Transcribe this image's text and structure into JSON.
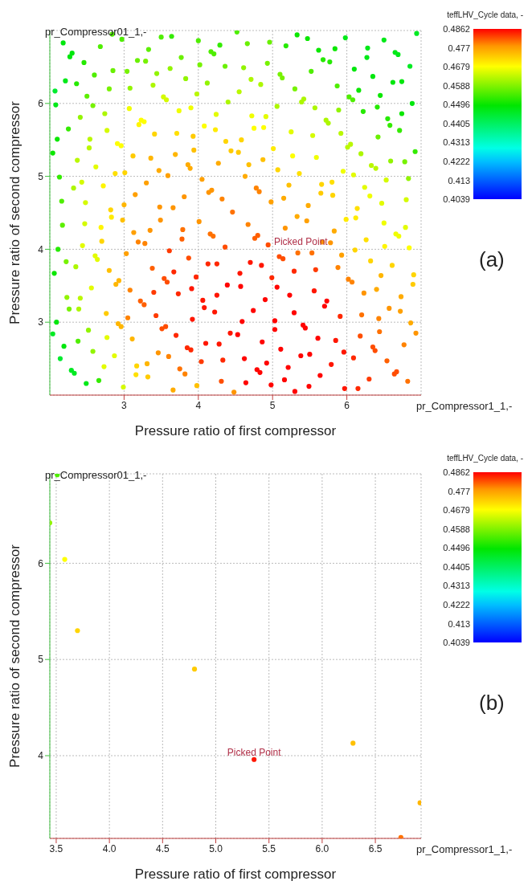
{
  "chart_data": [
    {
      "type": "scatter",
      "xlabel": "Pressure ratio of first compressor",
      "ylabel": "Pressure ratio of second compressor",
      "clabel": "teffLHV_Cycle data, -",
      "marker": "circle",
      "grid": true,
      "xlim": [
        2,
        7
      ],
      "ylim": [
        2,
        7
      ],
      "xticks": [
        3,
        4,
        5,
        6
      ],
      "yticks": [
        3,
        4,
        5,
        6
      ],
      "clim": [
        0.4039,
        0.4862
      ],
      "cticks": [
        0.4039,
        0.413,
        0.4222,
        0.4313,
        0.4405,
        0.4496,
        0.4588,
        0.4679,
        0.477,
        0.4862
      ],
      "annotations": [
        "pr_Compressor01_1,-",
        "pr_Compressor1_1,-",
        "(a)",
        {
          "text": "Picked Point",
          "x": 5.38,
          "y": 4.0
        }
      ],
      "x": [
        2.18,
        2.3,
        2.27,
        2.68,
        2.84,
        2.97,
        2.46,
        2.6,
        2.21,
        2.36,
        2.07,
        2.08,
        2.5,
        2.8,
        2.85,
        2.58,
        2.41,
        2.74,
        2.25,
        2.1,
        2.54,
        2.77,
        2.91,
        2.96,
        2.04,
        2.37,
        2.62,
        2.53,
        2.88,
        3.01,
        2.13,
        2.32,
        2.43,
        2.72,
        2.16,
        2.48,
        2.82,
        3.04,
        3.08,
        3.18,
        3.29,
        3.33,
        3.5,
        3.64,
        3.39,
        3.44,
        3.53,
        3.57,
        3.62,
        3.77,
        3.83,
        3.98,
        3.07,
        3.23,
        3.2,
        3.27,
        3.41,
        3.74,
        3.9,
        3.71,
        3.93,
        3.94,
        3.12,
        3.36,
        3.69,
        3.86,
        3.89,
        3.47,
        3.59,
        3.3,
        3.15,
        3.0,
        3.48,
        3.66,
        3.81,
        4.0,
        4.17,
        4.21,
        4.29,
        4.02,
        4.36,
        4.12,
        4.4,
        4.24,
        4.08,
        4.23,
        4.37,
        4.27,
        4.05,
        4.14,
        4.18,
        4.32,
        4.46,
        4.52,
        4.66,
        4.96,
        4.61,
        4.93,
        4.71,
        4.84,
        4.55,
        5.33,
        5.47,
        5.18,
        5.62,
        5.84,
        5.68,
        5.77,
        5.52,
        5.1,
        5.13,
        5.3,
        5.87,
        5.42,
        5.39,
        5.98,
        6.5,
        6.28,
        6.27,
        6.65,
        6.69,
        6.94,
        6.85,
        6.1,
        6.35,
        6.62,
        6.74,
        6.16,
        6.45,
        6.03,
        6.08,
        6.88,
        5.06,
        4.72,
        4.91,
        4.75,
        4.88,
        5.57,
        5.89,
        5.72,
        5.75,
        5.25,
        5.54,
        5.92,
        6.41,
        6.22,
        6.55,
        6.74,
        6.58,
        6.71,
        6.42,
        6.92,
        6.01,
        6.05,
        4.58,
        4.44,
        4.54,
        5.01,
        5.27,
        5.59,
        6.19,
        6.59,
        6.78,
        6.33,
        6.39,
        4.68,
        4.87,
        5.07,
        5.36,
        5.95,
        6.09,
        6.83,
        4.63,
        5.22,
        5.66,
        5.8,
        5.65,
        5.81,
        6.53,
        6.24,
        6.31,
        6.47,
        6.8,
        4.78,
        4.82,
        4.98,
        5.15,
        5.48,
        6.14,
        2.17,
        2.47,
        2.69,
        2.83,
        2.98,
        2.7,
        2.44,
        2.11,
        3.13,
        3.19,
        3.28,
        3.35,
        3.49,
        3.79,
        3.78,
        4.01,
        4.16,
        4.2,
        4.36,
        2.61,
        2.64,
        2.22,
        2.35,
        2.06,
        2.8,
        2.89,
        2.93,
        2.56,
        3.03,
        3.08,
        3.38,
        3.54,
        3.58,
        3.61,
        3.67,
        3.87,
        3.97,
        3.4,
        3.73,
        3.91,
        3.22,
        3.27,
        3.43,
        3.05,
        3.92,
        2.76,
        2.23,
        2.41,
        2.26,
        2.39,
        4.13,
        4.25,
        4.39,
        4.06,
        4.25,
        4.08,
        4.22,
        2.09,
        2.04,
        2.52,
        2.19,
        2.38,
        2.14,
        2.29,
        2.33,
        2.49,
        2.66,
        2.58,
        2.77,
        2.87,
        2.73,
        2.99,
        2.92,
        2.96,
        3.11,
        3.17,
        3.16,
        3.31,
        3.32,
        3.46,
        3.6,
        3.51,
        3.56,
        3.7,
        3.85,
        3.9,
        3.75,
        3.82,
        3.66,
        3.98,
        4.04,
        4.1,
        4.28,
        4.33,
        4.31,
        4.43,
        4.48,
        4.67,
        4.76,
        4.8,
        4.94,
        5.17,
        5.33,
        5.46,
        5.09,
        5.14,
        5.34,
        5.53,
        5.67,
        5.78,
        5.83,
        5.93,
        5.99,
        6.12,
        6.5,
        6.79,
        6.66,
        6.7,
        6.26,
        6.51,
        6.84,
        6.11,
        6.32,
        6.61,
        4.7,
        4.85,
        4.56,
        4.57,
        4.99,
        5.29,
        5.58,
        5.88,
        6.02,
        6.07,
        6.46,
        6.9,
        6.89,
        6.4,
        6.73,
        6.23,
        5.06,
        5.23,
        4.9,
        5.56,
        5.73,
        5.7,
        4.74,
        5.29,
        5.91,
        6.2,
        6.57,
        6.43,
        6.72,
        4.59,
        5.03,
        5.41,
        5.44,
        6.86,
        4.53,
        5.03,
        4.86,
        5.61,
        5.85,
        6.18,
        6.44,
        6.93,
        6.77,
        5.11,
        5.38,
        5.5,
        5.96,
        6.35,
        6.38,
        6.09,
        4.62,
        4.92,
        4.79,
        4.83,
        5.21,
        5.79,
        6.54,
        6.64,
        6.67,
        6.82,
        6.3,
        5.64,
        5.16,
        4.64,
        4.98,
        5.49,
        5.97,
        6.15,
        5.3
      ],
      "values": [
        6.83,
        6.69,
        6.64,
        6.78,
        6.95,
        6.88,
        6.56,
        6.39,
        6.31,
        6.27,
        6.17,
        5.98,
        6.1,
        6.2,
        6.45,
        5.97,
        5.81,
        5.86,
        5.65,
        5.51,
        5.51,
        5.63,
        5.45,
        5.42,
        5.32,
        5.22,
        5.13,
        5.39,
        5.04,
        5.05,
        4.99,
        4.84,
        4.92,
        4.87,
        4.66,
        4.64,
        4.54,
        6.44,
        6.21,
        6.59,
        6.58,
        6.74,
        6.91,
        6.92,
        6.25,
        6.41,
        6.09,
        6.05,
        6.48,
        6.63,
        6.34,
        6.13,
        5.93,
        5.77,
        5.71,
        5.75,
        5.58,
        5.9,
        5.94,
        5.59,
        5.55,
        5.36,
        5.28,
        5.25,
        5.3,
        5.16,
        5.11,
        5.08,
        5.01,
        4.91,
        4.75,
        4.61,
        4.58,
        4.57,
        4.72,
        6.86,
        6.71,
        6.68,
        6.8,
        6.53,
        6.51,
        6.28,
        6.02,
        5.85,
        5.69,
        5.64,
        5.48,
        5.18,
        4.96,
        4.78,
        4.81,
        4.69,
        4.51,
        6.98,
        6.82,
        6.84,
        6.49,
        6.55,
        6.33,
        6.26,
        6.16,
        6.94,
        6.89,
        6.79,
        6.73,
        6.75,
        6.6,
        6.57,
        6.44,
        6.4,
        6.35,
        6.2,
        6.24,
        6.06,
        6.02,
        6.9,
        6.87,
        6.76,
        6.63,
        6.7,
        6.67,
        6.96,
        6.51,
        6.47,
        6.37,
        6.29,
        6.3,
        6.18,
        6.11,
        6.09,
        6.05,
        6.0,
        5.96,
        5.83,
        5.82,
        5.66,
        5.67,
        5.94,
        5.91,
        5.77,
        5.73,
        5.61,
        5.56,
        5.59,
        5.95,
        5.89,
        5.79,
        5.86,
        5.7,
        5.63,
        5.54,
        5.34,
        5.4,
        5.44,
        5.5,
        5.35,
        5.33,
        5.38,
        5.28,
        5.26,
        5.31,
        5.21,
        5.2,
        5.15,
        5.11,
        5.16,
        5.23,
        5.09,
        5.04,
        5.07,
        5.02,
        4.97,
        5.0,
        4.88,
        4.89,
        4.92,
        4.77,
        4.74,
        4.95,
        4.85,
        4.73,
        4.63,
        4.68,
        4.84,
        4.79,
        4.65,
        4.7,
        4.6,
        4.56,
        4.33,
        4.35,
        4.3,
        4.44,
        4.4,
        4.11,
        4.05,
        4.0,
        4.23,
        4.1,
        4.08,
        4.26,
        4.4,
        4.27,
        4.14,
        4.38,
        4.21,
        4.18,
        4.03,
        3.91,
        3.86,
        3.83,
        3.76,
        3.67,
        3.71,
        3.52,
        3.57,
        3.47,
        3.94,
        3.44,
        3.74,
        3.6,
        3.55,
        3.98,
        3.69,
        3.88,
        3.62,
        3.41,
        3.39,
        3.46,
        3.29,
        3.24,
        3.09,
        3.06,
        3.04,
        3.12,
        3.34,
        3.33,
        3.18,
        3.18,
        3.8,
        3.8,
        3.51,
        3.3,
        3.37,
        3.2,
        3.14,
        3.0,
        2.84,
        2.89,
        2.67,
        2.74,
        2.5,
        2.34,
        2.3,
        2.16,
        2.2,
        2.6,
        2.79,
        2.54,
        2.39,
        2.11,
        2.98,
        2.94,
        2.77,
        2.4,
        2.28,
        2.43,
        2.25,
        2.58,
        2.53,
        2.91,
        2.94,
        2.82,
        2.65,
        2.62,
        2.36,
        2.29,
        2.07,
        2.13,
        2.46,
        2.71,
        2.7,
        2.48,
        2.19,
        2.85,
        2.04,
        4.34,
        4.15,
        4.19,
        4.06,
        4.29,
        4.45,
        4.39,
        3.9,
        3.87,
        3.95,
        3.95,
        4.1,
        4.09,
        4.25,
        3.92,
        4.41,
        4.43,
        4.36,
        4.3,
        4.21,
        4.18,
        4.13,
        4.04,
        4.02,
        3.99,
        3.84,
        3.78,
        3.82,
        3.78,
        3.67,
        3.49,
        3.61,
        3.7,
        3.72,
        3.75,
        3.59,
        3.55,
        3.64,
        3.65,
        3.52,
        3.45,
        3.35,
        3.4,
        3.48,
        3.37,
        3.31,
        3.43,
        3.29,
        3.22,
        3.16,
        3.13,
        3.08,
        3.1,
        3.19,
        3.05,
        3.15,
        3.01,
        3.02,
        2.96,
        2.92,
        2.99,
        2.83,
        2.9,
        2.73,
        2.78,
        2.75,
        2.81,
        2.87,
        2.85,
        2.69,
        2.63,
        2.54,
        2.56,
        2.59,
        2.66,
        2.61,
        2.51,
        2.5,
        2.44,
        2.35,
        2.31,
        2.38,
        2.42,
        2.47,
        2.29,
        2.32,
        2.19,
        2.22,
        2.27,
        2.21,
        2.17,
        2.14,
        2.12,
        2.09,
        2.09,
        2.05
      ],
      "cvalues": [
        0.448,
        0.448,
        0.448,
        0.455,
        0.455,
        0.455,
        0.452,
        0.455,
        0.447,
        0.452,
        0.445,
        0.447,
        0.456,
        0.458,
        0.457,
        0.458,
        0.46,
        0.462,
        0.453,
        0.45,
        0.463,
        0.465,
        0.468,
        0.468,
        0.45,
        0.463,
        0.466,
        0.463,
        0.471,
        0.472,
        0.453,
        0.462,
        0.465,
        0.469,
        0.455,
        0.465,
        0.472,
        0.458,
        0.46,
        0.457,
        0.458,
        0.456,
        0.455,
        0.453,
        0.462,
        0.46,
        0.465,
        0.465,
        0.46,
        0.457,
        0.46,
        0.463,
        0.467,
        0.468,
        0.469,
        0.468,
        0.472,
        0.467,
        0.467,
        0.471,
        0.473,
        0.474,
        0.473,
        0.475,
        0.475,
        0.476,
        0.476,
        0.476,
        0.477,
        0.477,
        0.477,
        0.475,
        0.478,
        0.478,
        0.478,
        0.455,
        0.455,
        0.455,
        0.453,
        0.458,
        0.457,
        0.46,
        0.462,
        0.466,
        0.468,
        0.47,
        0.472,
        0.476,
        0.477,
        0.478,
        0.478,
        0.479,
        0.48,
        0.455,
        0.457,
        0.457,
        0.46,
        0.458,
        0.462,
        0.462,
        0.463,
        0.45,
        0.45,
        0.452,
        0.45,
        0.45,
        0.452,
        0.452,
        0.455,
        0.458,
        0.458,
        0.458,
        0.455,
        0.462,
        0.462,
        0.447,
        0.447,
        0.447,
        0.447,
        0.447,
        0.447,
        0.446,
        0.446,
        0.448,
        0.448,
        0.448,
        0.448,
        0.45,
        0.45,
        0.455,
        0.455,
        0.448,
        0.462,
        0.467,
        0.466,
        0.468,
        0.468,
        0.462,
        0.46,
        0.462,
        0.462,
        0.466,
        0.465,
        0.463,
        0.452,
        0.452,
        0.452,
        0.45,
        0.453,
        0.453,
        0.457,
        0.453,
        0.463,
        0.463,
        0.472,
        0.473,
        0.473,
        0.47,
        0.468,
        0.467,
        0.462,
        0.46,
        0.458,
        0.463,
        0.463,
        0.474,
        0.474,
        0.472,
        0.471,
        0.467,
        0.466,
        0.46,
        0.476,
        0.474,
        0.472,
        0.471,
        0.473,
        0.472,
        0.465,
        0.466,
        0.467,
        0.466,
        0.465,
        0.479,
        0.479,
        0.477,
        0.476,
        0.476,
        0.471,
        0.456,
        0.465,
        0.469,
        0.47,
        0.474,
        0.472,
        0.466,
        0.452,
        0.477,
        0.479,
        0.479,
        0.478,
        0.478,
        0.48,
        0.481,
        0.478,
        0.48,
        0.48,
        0.482,
        0.466,
        0.466,
        0.458,
        0.462,
        0.45,
        0.474,
        0.475,
        0.475,
        0.466,
        0.477,
        0.479,
        0.481,
        0.482,
        0.482,
        0.483,
        0.484,
        0.482,
        0.484,
        0.483,
        0.484,
        0.485,
        0.481,
        0.481,
        0.483,
        0.479,
        0.485,
        0.473,
        0.46,
        0.463,
        0.458,
        0.462,
        0.484,
        0.484,
        0.486,
        0.485,
        0.485,
        0.485,
        0.485,
        0.448,
        0.446,
        0.46,
        0.448,
        0.455,
        0.445,
        0.446,
        0.446,
        0.447,
        0.453,
        0.46,
        0.466,
        0.466,
        0.466,
        0.465,
        0.475,
        0.475,
        0.475,
        0.472,
        0.471,
        0.475,
        0.473,
        0.478,
        0.479,
        0.482,
        0.482,
        0.484,
        0.484,
        0.484,
        0.48,
        0.479,
        0.476,
        0.474,
        0.483,
        0.485,
        0.485,
        0.484,
        0.482,
        0.485,
        0.478,
        0.479,
        0.481,
        0.481,
        0.482,
        0.478,
        0.476,
        0.477,
        0.482,
        0.482,
        0.48,
        0.48,
        0.478,
        0.478,
        0.476,
        0.477,
        0.47,
        0.47,
        0.467,
        0.466,
        0.467,
        0.467,
        0.471,
        0.469,
        0.468,
        0.472,
        0.472,
        0.472,
        0.485,
        0.485,
        0.485,
        0.486,
        0.484,
        0.484,
        0.483,
        0.479,
        0.479,
        0.479,
        0.475,
        0.472,
        0.473,
        0.476,
        0.476,
        0.478,
        0.486,
        0.486,
        0.486,
        0.485,
        0.486,
        0.486,
        0.486,
        0.486,
        0.484,
        0.48,
        0.478,
        0.479,
        0.477,
        0.486,
        0.486,
        0.486,
        0.486,
        0.476,
        0.486,
        0.486,
        0.486,
        0.486,
        0.485,
        0.482,
        0.48,
        0.478,
        0.479,
        0.486,
        0.486,
        0.486,
        0.485,
        0.482,
        0.482,
        0.484,
        0.486,
        0.486,
        0.486,
        0.486,
        0.486,
        0.485,
        0.481,
        0.482,
        0.482,
        0.48,
        0.483,
        0.486,
        0.486,
        0.486,
        0.486,
        0.486,
        0.485,
        0.484,
        0.486
      ]
    },
    {
      "type": "scatter",
      "xlabel": "Pressure ratio of first compressor",
      "ylabel": "Pressure ratio of second compressor",
      "clabel": "teffLHV_Cycle data, -",
      "marker": "circle",
      "grid": true,
      "xlim": [
        3.44,
        6.93
      ],
      "ylim": [
        3.14,
        6.93
      ],
      "xticks": [
        3.5,
        {
          "value": 4,
          "label": "4.0"
        },
        4.5,
        {
          "value": 5,
          "label": "5.0"
        },
        5.5,
        {
          "value": 6,
          "label": "6.0"
        },
        6.5
      ],
      "yticks": [
        4,
        5,
        6
      ],
      "clim": [
        0.4039,
        0.4862
      ],
      "cticks": [
        0.4039,
        0.413,
        0.4222,
        0.4313,
        0.4405,
        0.4496,
        0.4588,
        0.4679,
        0.477,
        0.4862
      ],
      "annotations": [
        "pr_Compressor01_1,-",
        "pr_Compressor1_1,-",
        "(b)",
        {
          "text": "Picked Point",
          "x": 5.36,
          "y": 3.96
        }
      ],
      "x": [
        3.51,
        3.44,
        3.58,
        3.7,
        4.8,
        5.36,
        6.29,
        6.92,
        6.74
      ],
      "values": [
        6.92,
        6.42,
        6.04,
        5.3,
        4.9,
        3.96,
        4.13,
        3.51,
        3.15
      ],
      "cvalues": [
        0.455,
        0.46,
        0.468,
        0.472,
        0.473,
        0.485,
        0.474,
        0.475,
        0.48
      ]
    }
  ]
}
